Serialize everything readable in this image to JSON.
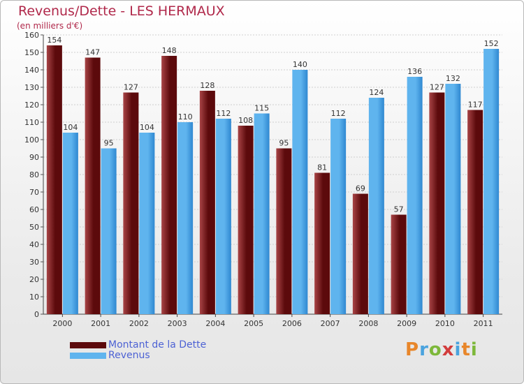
{
  "title": "Revenus/Dette - LES HERMAUX",
  "subtitle": "(en milliers d'€)",
  "colors": {
    "debt_dark": "#5c0a0c",
    "debt_light": "#a84446",
    "revenue_dark": "#2f88d1",
    "revenue_light": "#5fb4ee",
    "title": "#b0284a",
    "legend_text": "#4d62d4"
  },
  "legend": {
    "debt_label": "Montant de la Dette",
    "revenue_label": "Revenus"
  },
  "brand": {
    "text": "Proxiti",
    "letter_colors": [
      "#e8862a",
      "#4aa3de",
      "#7db83a",
      "#d23c3c",
      "#4aa3de",
      "#e8862a",
      "#7db83a"
    ]
  },
  "chart_data": {
    "type": "bar",
    "title": "Revenus/Dette - LES HERMAUX",
    "ylabel": "(en milliers d'€)",
    "ylim": [
      0,
      160
    ],
    "yticks": [
      0,
      10,
      20,
      30,
      40,
      50,
      60,
      70,
      80,
      90,
      100,
      110,
      120,
      130,
      140,
      150,
      160
    ],
    "grid": true,
    "categories": [
      "2000",
      "2001",
      "2002",
      "2003",
      "2004",
      "2005",
      "2006",
      "2007",
      "2008",
      "2009",
      "2010",
      "2011"
    ],
    "series": [
      {
        "name": "Montant de la Dette",
        "values": [
          154,
          147,
          127,
          148,
          128,
          108,
          95,
          81,
          69,
          57,
          127,
          117
        ]
      },
      {
        "name": "Revenus",
        "values": [
          104,
          95,
          104,
          110,
          112,
          115,
          140,
          112,
          124,
          136,
          132,
          152
        ]
      }
    ]
  }
}
